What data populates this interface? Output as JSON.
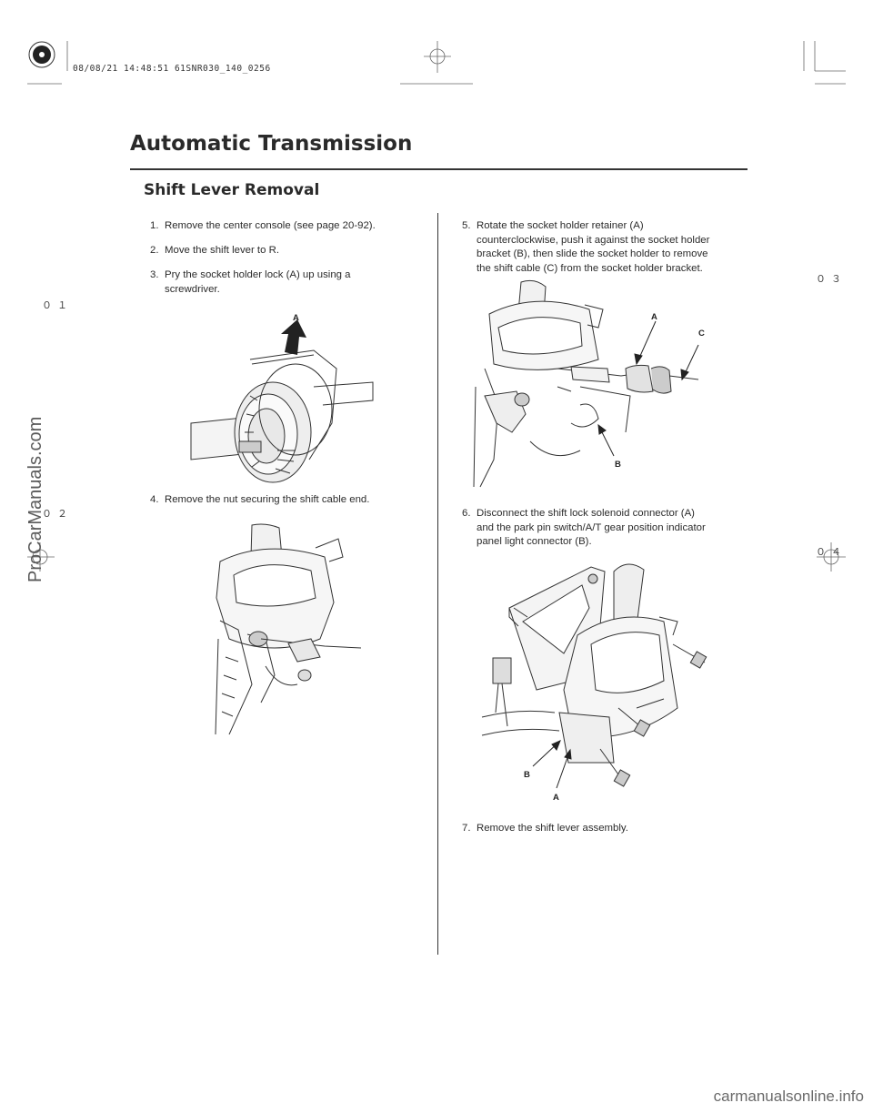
{
  "print_stamp": "08/08/21 14:48:51 61SNR030_140_0256",
  "header": {
    "section_title": "Automatic Transmission",
    "subsection_title": "Shift Lever Removal"
  },
  "margin_marks": [
    "０１",
    "０２",
    "０３",
    "０４"
  ],
  "steps_left": [
    {
      "num": "1.",
      "text": "Remove the center console (see page 20-92)."
    },
    {
      "num": "2.",
      "text": "Move the shift lever to R."
    },
    {
      "num": "3.",
      "text": "Pry the socket holder lock (A) up using a",
      "cont": "screwdriver."
    },
    {
      "num": "4.",
      "text": "Remove the nut securing the shift cable end."
    }
  ],
  "steps_right": [
    {
      "num": "5.",
      "text": "Rotate the socket holder retainer (A)",
      "cont": [
        "counterclockwise, push it against the socket holder",
        "bracket (B), then slide the socket holder to remove",
        "the shift cable (C) from the socket holder bracket."
      ]
    },
    {
      "num": "6.",
      "text": "Disconnect the shift lock solenoid connector (A)",
      "cont": [
        "and the park pin switch/A/T gear position indicator",
        "panel light connector (B)."
      ]
    },
    {
      "num": "7.",
      "text": "Remove the shift lever assembly."
    }
  ],
  "figures": {
    "fig3_labels": [
      "A"
    ],
    "fig5_labels": [
      "A",
      "C",
      "B"
    ],
    "fig6_labels": [
      "B",
      "A"
    ]
  },
  "watermarks": {
    "left": "ProCarManuals.com",
    "bottom": "carmanualsonline.info"
  }
}
